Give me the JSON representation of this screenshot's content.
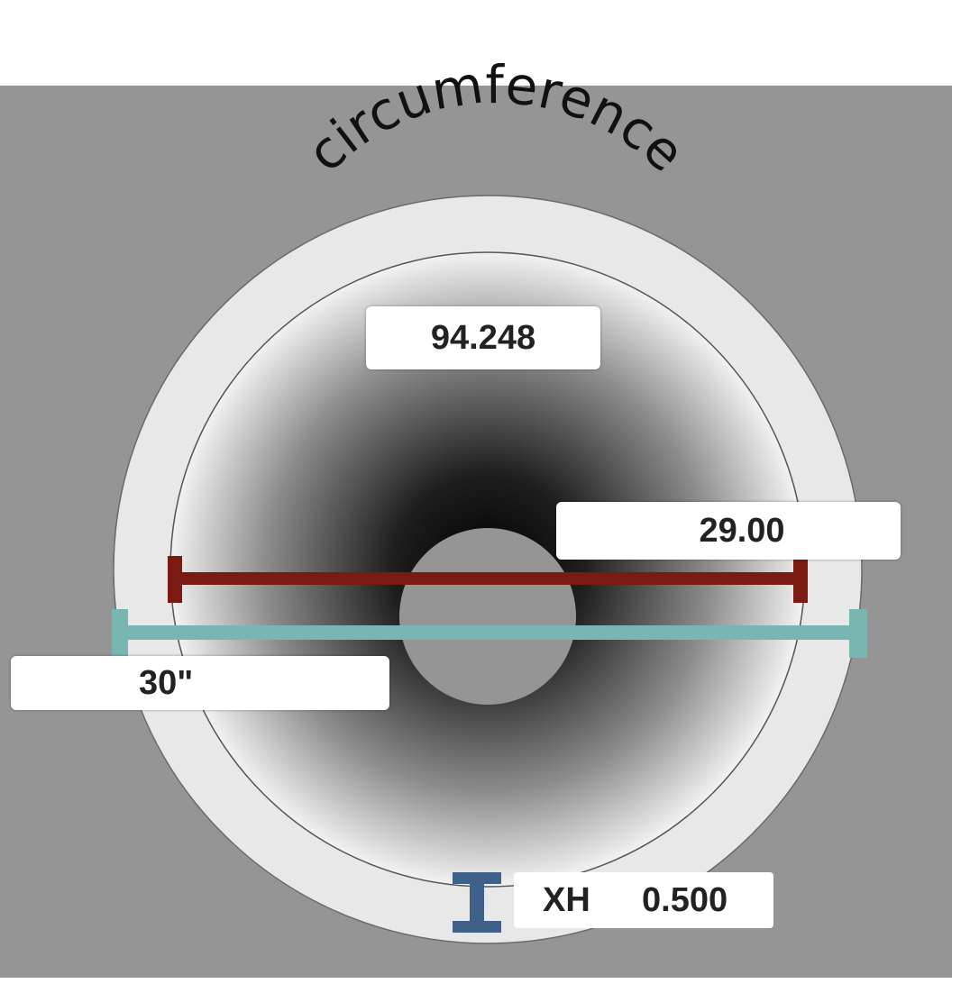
{
  "title_arc": "circumference",
  "circumference_value": "94.248",
  "inside_diameter_value": "29.00",
  "outside_diameter_value": "30\"",
  "wall": {
    "schedule": "XH",
    "thickness": "0.500"
  },
  "colors": {
    "background": "#959595",
    "pipe_wall": "#e8e8e8",
    "inside_dimension": "#7a1a12",
    "outside_dimension": "#79b5b1",
    "wall_marker": "#3f6189"
  }
}
